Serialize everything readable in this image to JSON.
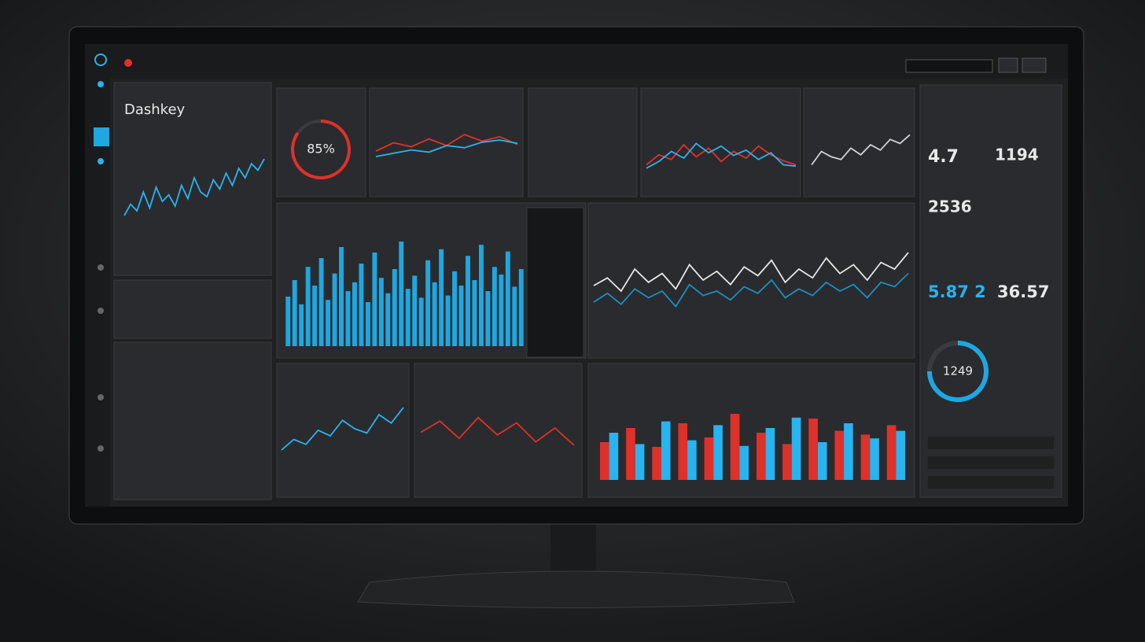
{
  "header": {
    "title": "Dashkey"
  },
  "gauge": {
    "label": "85%",
    "value": 85
  },
  "ring": {
    "label": "1249",
    "value": 75
  },
  "stats": [
    "4.7",
    "1194",
    "2536",
    "5.87 2",
    "36.57"
  ],
  "charts": [
    {
      "type": "line",
      "ylim": [
        0,
        100
      ],
      "series": [
        {
          "color": "#27b4f0",
          "values": [
            30,
            42,
            35,
            55,
            38,
            60,
            45,
            52,
            40,
            62,
            48,
            70,
            55,
            50,
            68,
            58,
            75,
            62,
            80,
            70,
            85,
            78,
            90
          ]
        }
      ]
    },
    {
      "type": "line",
      "ylim": [
        0,
        100
      ],
      "series": [
        {
          "color": "#e0302a",
          "values": [
            40,
            55,
            48,
            62,
            50,
            70,
            58,
            66,
            52
          ]
        },
        {
          "color": "#27b4f0",
          "values": [
            30,
            36,
            42,
            38,
            50,
            46,
            56,
            60,
            54
          ]
        }
      ]
    },
    {
      "type": "line",
      "ylim": [
        0,
        100
      ],
      "series": [
        {
          "color": "#e0302a",
          "values": [
            30,
            45,
            38,
            60,
            42,
            55,
            35,
            50,
            40,
            58,
            45,
            36,
            30
          ]
        },
        {
          "color": "#27b4f0",
          "values": [
            25,
            35,
            50,
            40,
            62,
            48,
            58,
            44,
            52,
            38,
            48,
            30,
            28
          ]
        }
      ]
    },
    {
      "type": "line",
      "ylim": [
        0,
        100
      ],
      "series": [
        {
          "color": "#cfd3d8",
          "values": [
            30,
            50,
            42,
            38,
            55,
            45,
            60,
            52,
            68,
            62,
            75
          ]
        }
      ]
    },
    {
      "type": "bar",
      "ylim": [
        0,
        100
      ],
      "series": [
        {
          "color": "#1ea7e0",
          "values": [
            45,
            60,
            38,
            72,
            55,
            80,
            42,
            66,
            90,
            50,
            58,
            75,
            40,
            85,
            62,
            48,
            70,
            95,
            52,
            64,
            44,
            78,
            58,
            88,
            46,
            68,
            55,
            82,
            60,
            92,
            50,
            72,
            65,
            86,
            54,
            70
          ]
        }
      ]
    },
    {
      "type": "line",
      "ylim": [
        0,
        100
      ],
      "series": [
        {
          "color": "#e6e6e6",
          "values": [
            55,
            62,
            50,
            70,
            58,
            66,
            52,
            74,
            60,
            68,
            56,
            72,
            64,
            78,
            58,
            70,
            62,
            80,
            66,
            74,
            60,
            76,
            70,
            85
          ]
        },
        {
          "color": "#1b8fc0",
          "values": [
            40,
            48,
            38,
            52,
            44,
            50,
            36,
            56,
            46,
            50,
            42,
            54,
            48,
            60,
            44,
            52,
            46,
            58,
            50,
            56,
            44,
            58,
            54,
            66
          ]
        }
      ]
    },
    {
      "type": "line",
      "ylim": [
        0,
        100
      ],
      "series": [
        {
          "color": "#27b4f0",
          "values": [
            20,
            35,
            28,
            48,
            40,
            62,
            50,
            44,
            70,
            58,
            80
          ]
        }
      ]
    },
    {
      "type": "line",
      "ylim": [
        0,
        100
      ],
      "series": [
        {
          "color": "#e0302a",
          "values": [
            55,
            68,
            48,
            72,
            52,
            66,
            44,
            60,
            40
          ]
        }
      ]
    },
    {
      "type": "bar",
      "ylim": [
        0,
        100
      ],
      "series": [
        {
          "color": "#e0302a",
          "values": [
            40,
            55,
            35,
            60,
            45,
            70,
            50,
            38,
            65,
            52,
            48,
            58
          ]
        },
        {
          "color": "#27b4f0",
          "values": [
            50,
            38,
            62,
            42,
            58,
            36,
            55,
            66,
            40,
            60,
            44,
            52
          ]
        }
      ]
    }
  ]
}
